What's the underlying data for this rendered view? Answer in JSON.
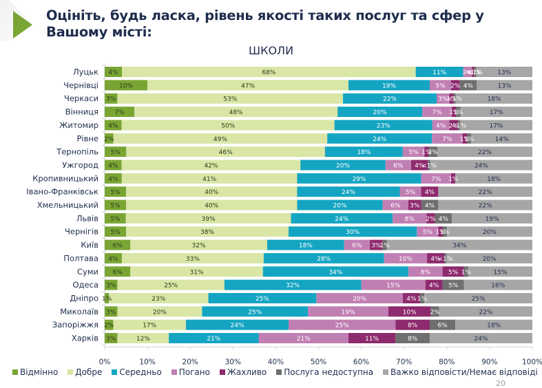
{
  "header": {
    "title": "Оцініть, будь ласка, рівень якості таких послуг та сфер у Вашому місті:",
    "page_number": "20"
  },
  "chart_data": {
    "type": "bar",
    "orientation": "horizontal",
    "stacked": true,
    "title": "ШКОЛИ",
    "xlabel": "",
    "ylabel": "",
    "xlim": [
      0,
      100
    ],
    "x_ticks": [
      "0%",
      "10%",
      "20%",
      "30%",
      "40%",
      "50%",
      "60%",
      "70%",
      "80%",
      "90%",
      "100%"
    ],
    "legend_position": "bottom",
    "categories": [
      "Луцьк",
      "Чернівці",
      "Черкаси",
      "Вінниця",
      "Житомир",
      "Рівне",
      "Тернопіль",
      "Ужгород",
      "Кропивницький",
      "Івано-Франківськ",
      "Хмельницький",
      "Львів",
      "Чернігів",
      "Київ",
      "Полтава",
      "Суми",
      "Одеса",
      "Дніпро",
      "Миколаїв",
      "Запоріжжя",
      "Харків"
    ],
    "series": [
      {
        "name": "Відмінно",
        "color": "#7aa534",
        "label_color": "#2b3a1a",
        "values": [
          4,
          10,
          3,
          7,
          4,
          2,
          5,
          4,
          4,
          5,
          5,
          5,
          5,
          6,
          4,
          6,
          3,
          1,
          3,
          2,
          3
        ],
        "labels": [
          "4%",
          "10%",
          "3%",
          "7%",
          "4%",
          "2%",
          "5%",
          "4%",
          "4%",
          "5%",
          "5%",
          "5%",
          "5%",
          "6%",
          "4%",
          "6%",
          "3%",
          "1%",
          "3%",
          "2%",
          "3%"
        ]
      },
      {
        "name": "Добре",
        "color": "#d9e6a6",
        "label_color": "#2b3a1a",
        "values": [
          68,
          47,
          53,
          48,
          50,
          49,
          46,
          42,
          41,
          40,
          40,
          39,
          38,
          32,
          33,
          31,
          25,
          23,
          20,
          17,
          12
        ],
        "labels": [
          "68%",
          "47%",
          "53%",
          "48%",
          "50%",
          "49%",
          "46%",
          "42%",
          "41%",
          "40%",
          "40%",
          "39%",
          "38%",
          "32%",
          "33%",
          "31%",
          "25%",
          "23%",
          "20%",
          "17%",
          "12%"
        ]
      },
      {
        "name": "Середньо",
        "color": "#14a5c2",
        "label_color": "#ffffff",
        "values": [
          11,
          19,
          22,
          20,
          23,
          24,
          18,
          20,
          29,
          24,
          20,
          24,
          30,
          18,
          28,
          34,
          32,
          25,
          25,
          24,
          21
        ],
        "labels": [
          "11%",
          "19%",
          "22%",
          "20%",
          "23%",
          "24%",
          "18%",
          "20%",
          "29%",
          "24%",
          "20%",
          "24%",
          "30%",
          "18%",
          "28%",
          "34%",
          "32%",
          "25%",
          "25%",
          "24%",
          "21%"
        ]
      },
      {
        "name": "Погано",
        "color": "#c07fb3",
        "label_color": "#ffffff",
        "values": [
          2,
          5,
          3,
          7,
          4,
          7,
          5,
          6,
          7,
          5,
          6,
          8,
          5,
          6,
          10,
          8,
          15,
          20,
          19,
          25,
          21
        ],
        "labels": [
          "2%",
          "5%",
          "3%",
          "7%",
          "4%",
          "7%",
          "5%",
          "6%",
          "7%",
          "5%",
          "6%",
          "8%",
          "5%",
          "6%",
          "10%",
          "8%",
          "15%",
          "20%",
          "19%",
          "25%",
          "21%"
        ]
      },
      {
        "name": "Жахливо",
        "color": "#8e2a6e",
        "label_color": "#ffffff",
        "values": [
          0.5,
          2,
          1,
          1,
          2,
          1,
          1,
          4,
          1,
          4,
          3,
          2,
          1,
          3,
          4,
          5,
          4,
          4,
          10,
          8,
          11
        ],
        "labels": [
          "<1%",
          "2%",
          "1%",
          "1%",
          "2%",
          "1%",
          "1%",
          "4%",
          "1%",
          "4%",
          "3%",
          "2%",
          "1%",
          "3%",
          "4%",
          "5%",
          "4%",
          "4%",
          "10%",
          "8%",
          "11%"
        ]
      },
      {
        "name": "Послуга недоступна",
        "color": "#6f6f6f",
        "label_color": "#ffffff",
        "values": [
          0.5,
          4,
          0.5,
          1,
          0.5,
          1,
          2,
          0.5,
          0,
          0,
          4,
          4,
          1,
          1,
          0.5,
          1,
          5,
          1,
          2,
          6,
          8
        ],
        "labels": [
          "<1%",
          "4%",
          "<1%",
          "1%",
          "<1%",
          "1%",
          "2%",
          "<1%",
          "",
          "",
          "4%",
          "4%",
          "1%",
          "1%",
          "<1%",
          "1%",
          "5%",
          "1%",
          "2%",
          "6%",
          "8%"
        ]
      },
      {
        "name": "Важко відповісти/Немає відповіді",
        "color": "#a6a6a6",
        "label_color": "#1f2d4e",
        "values": [
          13,
          13,
          18,
          17,
          17,
          14,
          22,
          24,
          18,
          22,
          22,
          19,
          20,
          34,
          20,
          15,
          16,
          25,
          22,
          18,
          24
        ],
        "labels": [
          "13%",
          "13%",
          "18%",
          "17%",
          "17%",
          "14%",
          "22%",
          "24%",
          "18%",
          "22%",
          "22%",
          "19%",
          "20%",
          "34%",
          "20%",
          "15%",
          "16%",
          "25%",
          "22%",
          "18%",
          "24%"
        ]
      }
    ]
  }
}
